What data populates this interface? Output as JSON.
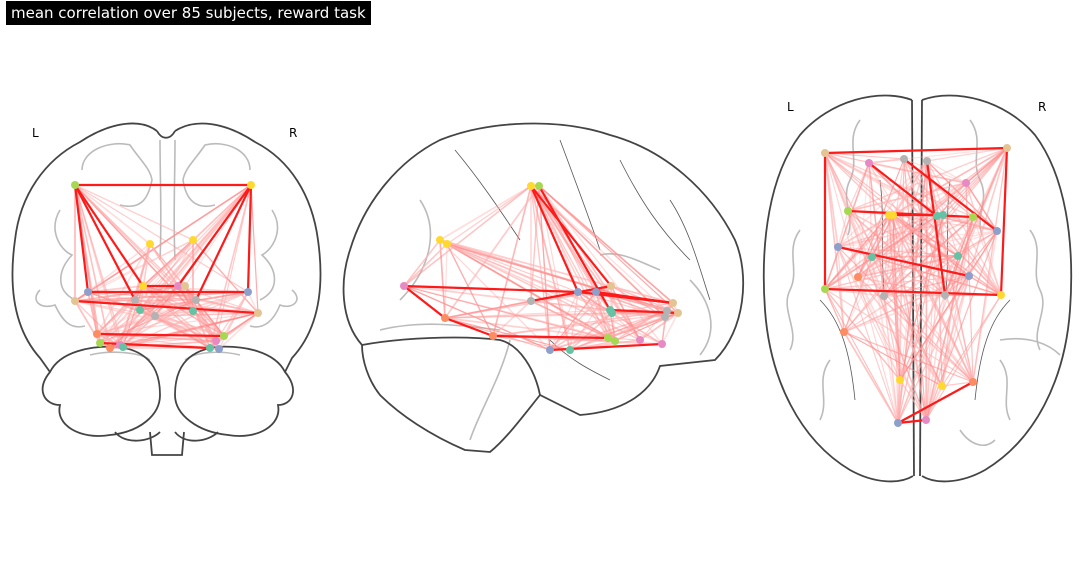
{
  "figure": {
    "title": "mean correlation over 85 subjects, reward task",
    "coronal": {
      "left_label": "L",
      "right_label": "R"
    },
    "axial": {
      "left_label": "L",
      "right_label": "R"
    },
    "colors": {
      "outline": "#444444",
      "sulci": "#bbbbbb",
      "edge_strong": "#ff1a1a",
      "edge_weak": "#ffb3b3"
    },
    "node_colors": [
      "#66c2a5",
      "#fc8d62",
      "#8da0cb",
      "#e78ac3",
      "#a6d854",
      "#ffd92f",
      "#e5c494",
      "#b3b3b3"
    ]
  }
}
